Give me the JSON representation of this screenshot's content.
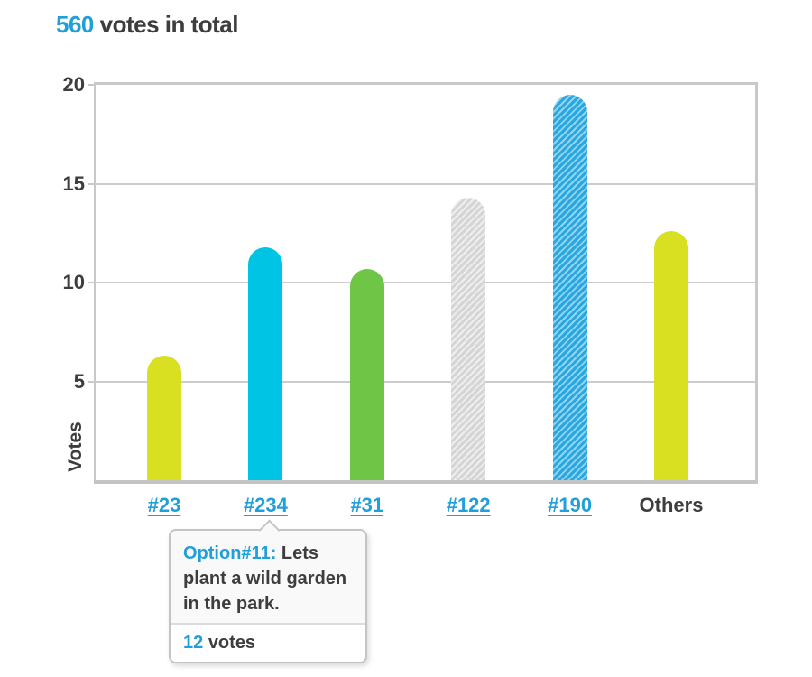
{
  "header": {
    "total_count": "560",
    "title_rest": "votes in total"
  },
  "chart_data": {
    "type": "bar",
    "title": "560 votes in total",
    "xlabel": "",
    "ylabel": "Votes",
    "ylim": [
      0,
      20
    ],
    "yticks": [
      5,
      10,
      15,
      20
    ],
    "grid": true,
    "legend": false,
    "categories": [
      "#23",
      "#234",
      "#31",
      "#122",
      "#190",
      "Others"
    ],
    "values": [
      6.3,
      11.8,
      10.7,
      14.3,
      19.5,
      12.6
    ],
    "category_is_link": [
      true,
      true,
      true,
      true,
      true,
      false
    ],
    "bar_styles": [
      {
        "color": "#d9e021",
        "pattern": "solid"
      },
      {
        "color": "#00c4e4",
        "pattern": "solid"
      },
      {
        "color": "#6fc646",
        "pattern": "solid"
      },
      {
        "color": "#d5d5d5",
        "pattern": "diagonal-stripes",
        "stripe_color": "#efefef"
      },
      {
        "color": "#2aa7df",
        "pattern": "diagonal-stripes",
        "stripe_color": "#8fd4f0"
      },
      {
        "color": "#d9e021",
        "pattern": "solid"
      }
    ]
  },
  "tooltip": {
    "for_category": "#234",
    "option_label": "Option#11:",
    "option_text": "Lets plant a wild garden in the park.",
    "votes_value": "12",
    "votes_label": "votes"
  },
  "colors": {
    "accent_blue": "#219fd9",
    "text_dark": "#3d3d3d",
    "gridline": "#cccccc",
    "chart_border": "#c8c8c8",
    "tooltip_border": "#c4c4c4"
  }
}
